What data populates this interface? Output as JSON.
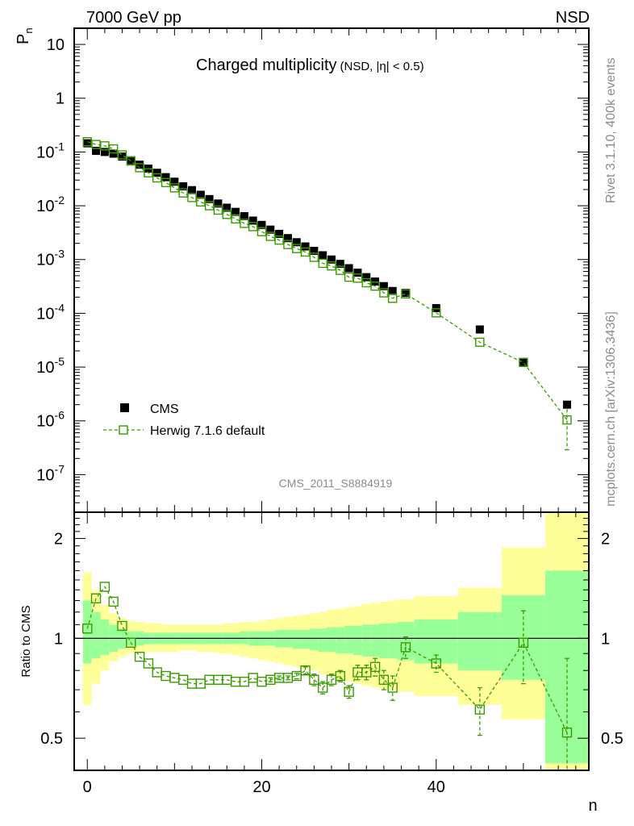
{
  "header": {
    "left": "7000 GeV pp",
    "right": "NSD"
  },
  "side_text": {
    "rivet": "Rivet 3.1.10,  400k events",
    "mcplots": "mcplots.cern.ch [arXiv:1306.3436]"
  },
  "watermark": "CMS_2011_S8884919",
  "chart_data": [
    {
      "type": "scatter",
      "title": "Charged multiplicity",
      "title_suffix": "(NSD, |η| < 0.5)",
      "ylabel": "P",
      "ylabel_sub": "n",
      "xlabel": "n",
      "log_y": true,
      "xlim": [
        -1.5,
        57.5
      ],
      "ylim": [
        2e-08,
        20
      ],
      "y_ticks": [
        {
          "value": 1e-07,
          "base": "10",
          "exp": "-7"
        },
        {
          "value": 1e-06,
          "base": "10",
          "exp": "-6"
        },
        {
          "value": 1e-05,
          "base": "10",
          "exp": "-5"
        },
        {
          "value": 0.0001,
          "base": "10",
          "exp": "-4"
        },
        {
          "value": 0.001,
          "base": "10",
          "exp": "-3"
        },
        {
          "value": 0.01,
          "base": "10",
          "exp": "-2"
        },
        {
          "value": 0.1,
          "base": "10",
          "exp": "-1"
        },
        {
          "value": 1,
          "base": "1",
          "exp": ""
        },
        {
          "value": 10,
          "base": "10",
          "exp": ""
        }
      ],
      "legend": {
        "position": "bottom-left",
        "entries": [
          "CMS",
          "Herwig 7.1.6 default"
        ]
      },
      "series": [
        {
          "name": "CMS",
          "color": "#000000",
          "marker": "filled-square",
          "x": [
            0,
            1,
            2,
            3,
            4,
            5,
            6,
            7,
            8,
            9,
            10,
            11,
            12,
            13,
            14,
            15,
            16,
            17,
            18,
            19,
            20,
            21,
            22,
            23,
            24,
            25,
            26,
            27,
            28,
            29,
            30,
            31,
            32,
            33,
            34,
            35,
            36.5,
            40,
            45,
            50,
            55
          ],
          "y": [
            0.145,
            0.105,
            0.1,
            0.093,
            0.082,
            0.07,
            0.058,
            0.049,
            0.041,
            0.034,
            0.028,
            0.023,
            0.0195,
            0.016,
            0.0133,
            0.011,
            0.0092,
            0.0077,
            0.0064,
            0.0053,
            0.0044,
            0.0036,
            0.003,
            0.0025,
            0.0021,
            0.00175,
            0.00145,
            0.0012,
            0.001,
            0.00083,
            0.00069,
            0.00057,
            0.00047,
            0.00039,
            0.00032,
            0.00026,
            0.00024,
            0.000125,
            5e-05,
            1.25e-05,
            2e-06
          ]
        },
        {
          "name": "Herwig 7.1.6 default",
          "color": "#3a9a00",
          "marker": "open-square",
          "line": "dashed",
          "x": [
            0,
            1,
            2,
            3,
            4,
            5,
            6,
            7,
            8,
            9,
            10,
            11,
            12,
            13,
            14,
            15,
            16,
            17,
            18,
            19,
            20,
            21,
            22,
            23,
            24,
            25,
            26,
            27,
            28,
            29,
            30,
            31,
            32,
            33,
            34,
            35,
            36.5,
            40,
            45,
            50,
            55
          ],
          "y": [
            0.155,
            0.138,
            0.13,
            0.114,
            0.088,
            0.068,
            0.051,
            0.041,
            0.033,
            0.027,
            0.0215,
            0.0173,
            0.0142,
            0.0118,
            0.01,
            0.0083,
            0.0069,
            0.0057,
            0.0047,
            0.0041,
            0.0033,
            0.0027,
            0.0023,
            0.0019,
            0.0016,
            0.00138,
            0.0011,
            0.00085,
            0.00076,
            0.00063,
            0.00047,
            0.00045,
            0.00037,
            0.00032,
            0.00024,
            0.00019,
            0.00023,
            0.000102,
            2.9e-05,
            1.22e-05,
            1.04e-06
          ],
          "y_err_low": [
            0,
            0,
            0,
            0,
            0,
            0,
            0,
            0,
            0,
            0,
            0,
            0,
            0,
            0,
            0,
            0,
            0,
            0,
            0,
            0,
            0,
            0,
            0,
            0,
            0,
            0,
            0,
            0,
            0,
            0,
            0,
            0,
            0,
            0,
            0,
            0,
            0,
            0,
            0,
            0,
            7.5e-07
          ],
          "y_err_high": [
            0,
            0,
            0,
            0,
            0,
            0,
            0,
            0,
            0,
            0,
            0,
            0,
            0,
            0,
            0,
            0,
            0,
            0,
            0,
            0,
            0,
            0,
            0,
            0,
            0,
            0,
            0,
            0,
            0,
            0,
            0,
            0,
            0,
            0,
            0,
            0,
            0,
            0,
            0,
            0,
            6e-07
          ]
        }
      ]
    },
    {
      "type": "scatter",
      "ylabel": "Ratio to CMS",
      "xlabel": "n",
      "log_y": true,
      "xlim": [
        -1.5,
        57.5
      ],
      "ylim": [
        0.4,
        2.4
      ],
      "x_ticks": [
        0,
        20,
        40
      ],
      "y_ticks": [
        0.5,
        1,
        2
      ],
      "y_tick_labels": [
        "0.5",
        "1",
        "2"
      ],
      "reference_line": 1,
      "bands": {
        "edges": [
          -0.5,
          0.5,
          1.5,
          2.5,
          3.5,
          4.5,
          5.5,
          6.5,
          7.5,
          8.5,
          9.5,
          10.5,
          11.5,
          12.5,
          13.5,
          14.5,
          15.5,
          16.5,
          17.5,
          18.5,
          19.5,
          20.5,
          21.5,
          22.5,
          23.5,
          24.5,
          25.5,
          26.5,
          27.5,
          28.5,
          29.5,
          30.5,
          31.5,
          32.5,
          33.5,
          34.5,
          35.5,
          37.5,
          42.5,
          47.5,
          52.5,
          57.5
        ],
        "stat_color": "#99ff99",
        "total_color": "#ffff99",
        "stat_up": [
          1.3,
          1.2,
          1.14,
          1.1,
          1.07,
          1.05,
          1.05,
          1.04,
          1.04,
          1.04,
          1.04,
          1.04,
          1.04,
          1.04,
          1.04,
          1.04,
          1.04,
          1.04,
          1.05,
          1.05,
          1.05,
          1.05,
          1.06,
          1.06,
          1.06,
          1.06,
          1.07,
          1.07,
          1.08,
          1.08,
          1.09,
          1.09,
          1.1,
          1.1,
          1.11,
          1.11,
          1.12,
          1.14,
          1.2,
          1.35,
          1.6
        ],
        "stat_lo": [
          0.84,
          0.87,
          0.89,
          0.91,
          0.93,
          0.95,
          0.95,
          0.96,
          0.96,
          0.96,
          0.96,
          0.96,
          0.96,
          0.96,
          0.96,
          0.96,
          0.96,
          0.96,
          0.96,
          0.95,
          0.95,
          0.95,
          0.94,
          0.94,
          0.93,
          0.93,
          0.92,
          0.91,
          0.91,
          0.9,
          0.9,
          0.89,
          0.88,
          0.88,
          0.87,
          0.87,
          0.86,
          0.84,
          0.8,
          0.75,
          0.42
        ],
        "total_up": [
          1.58,
          1.39,
          1.26,
          1.19,
          1.15,
          1.13,
          1.12,
          1.11,
          1.11,
          1.1,
          1.1,
          1.1,
          1.1,
          1.1,
          1.1,
          1.1,
          1.11,
          1.11,
          1.12,
          1.12,
          1.13,
          1.14,
          1.15,
          1.16,
          1.17,
          1.18,
          1.19,
          1.2,
          1.22,
          1.23,
          1.24,
          1.25,
          1.27,
          1.28,
          1.29,
          1.3,
          1.31,
          1.34,
          1.42,
          1.88,
          2.4
        ],
        "total_lo": [
          0.63,
          0.73,
          0.8,
          0.85,
          0.88,
          0.9,
          0.91,
          0.91,
          0.91,
          0.91,
          0.91,
          0.92,
          0.92,
          0.91,
          0.91,
          0.9,
          0.9,
          0.89,
          0.88,
          0.87,
          0.86,
          0.85,
          0.84,
          0.83,
          0.82,
          0.81,
          0.8,
          0.78,
          0.77,
          0.75,
          0.74,
          0.73,
          0.72,
          0.71,
          0.7,
          0.7,
          0.69,
          0.67,
          0.63,
          0.57,
          0.4
        ]
      },
      "series": [
        {
          "name": "Herwig 7.1.6 default",
          "color": "#3a9a00",
          "marker": "open-square",
          "line": "dashed",
          "x": [
            0,
            1,
            2,
            3,
            4,
            5,
            6,
            7,
            8,
            9,
            10,
            11,
            12,
            13,
            14,
            15,
            16,
            17,
            18,
            19,
            20,
            21,
            22,
            23,
            24,
            25,
            26,
            27,
            28,
            29,
            30,
            31,
            32,
            33,
            34,
            35,
            36.5,
            40,
            45,
            50,
            55
          ],
          "y": [
            1.07,
            1.32,
            1.43,
            1.29,
            1.09,
            0.97,
            0.88,
            0.84,
            0.79,
            0.77,
            0.76,
            0.75,
            0.73,
            0.73,
            0.75,
            0.75,
            0.75,
            0.74,
            0.74,
            0.76,
            0.74,
            0.75,
            0.76,
            0.76,
            0.77,
            0.8,
            0.75,
            0.71,
            0.75,
            0.77,
            0.69,
            0.79,
            0.79,
            0.82,
            0.75,
            0.71,
            0.94,
            0.84,
            0.61,
            0.97,
            0.52
          ],
          "y_err": [
            0,
            0,
            0,
            0,
            0,
            0,
            0,
            0,
            0,
            0,
            0,
            0,
            0,
            0,
            0,
            0,
            0,
            0,
            0,
            0,
            0,
            0.01,
            0.01,
            0.01,
            0.015,
            0.02,
            0.03,
            0.03,
            0.03,
            0.03,
            0.03,
            0.04,
            0.04,
            0.05,
            0.05,
            0.06,
            0.07,
            0.05,
            0.1,
            0.24,
            0.35
          ]
        }
      ]
    }
  ]
}
